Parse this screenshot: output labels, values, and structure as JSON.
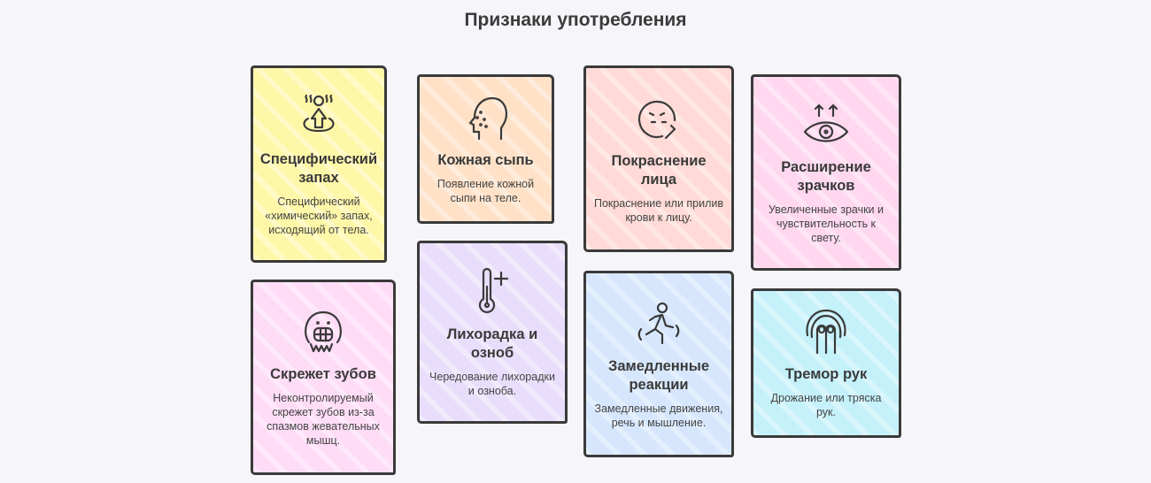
{
  "title": "Признаки употребления",
  "cards": [
    {
      "icon": "smell-person-icon",
      "color": "#fff7a8",
      "title": "Специфический запах",
      "text": "Специфический «химический» запах, исходящий от тела."
    },
    {
      "icon": "face-rash-icon",
      "color": "#ffe1c7",
      "title": "Кожная сыпь",
      "text": "Появление кожной сыпи на теле."
    },
    {
      "icon": "flushed-face-icon",
      "color": "#ffdad6",
      "title": "Покраснение лица",
      "text": "Покраснение или прилив крови к лицу."
    },
    {
      "icon": "dilated-eye-icon",
      "color": "#ffd7ef",
      "title": "Расширение зрачков",
      "text": "Увеличенные зрачки и чувствительность к свету."
    },
    {
      "icon": "grinding-teeth-icon",
      "color": "#ffdcf6",
      "title": "Скрежет зубов",
      "text": "Неконтролируемый скрежет зубов из-за спазмов жевательных мышц."
    },
    {
      "icon": "thermometer-icon",
      "color": "#e8defb",
      "title": "Лихорадка и озноб",
      "text": "Чередование лихорадки и озноба."
    },
    {
      "icon": "slow-runner-icon",
      "color": "#d6e7fd",
      "title": "Замедленные реакции",
      "text": "Замедленные движения, речь и мышление."
    },
    {
      "icon": "trembling-hand-icon",
      "color": "#c5f1fb",
      "title": "Тремор рук",
      "text": "Дрожание или тряска рук."
    }
  ]
}
